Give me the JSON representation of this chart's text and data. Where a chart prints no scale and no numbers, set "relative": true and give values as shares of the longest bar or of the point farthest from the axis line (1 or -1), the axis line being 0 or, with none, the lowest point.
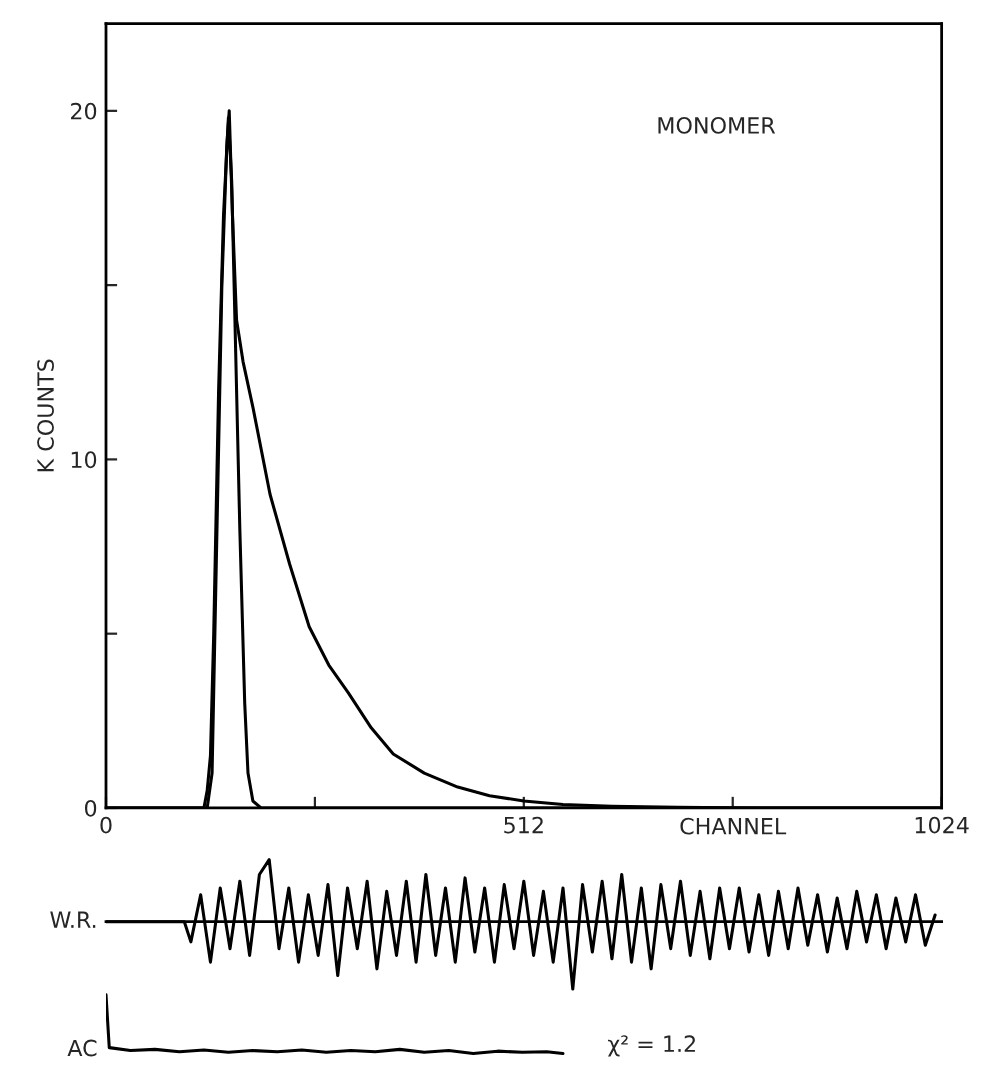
{
  "chart_data": [
    {
      "type": "line",
      "ylabel": "K COUNTS",
      "xlabel": "CHANNEL",
      "annotations": [
        "MONOMER"
      ],
      "xlim": [
        0,
        1024
      ],
      "ylim": [
        0,
        22.5
      ],
      "xticks": [
        0,
        {
          "value": 256,
          "label": null
        },
        512,
        {
          "value": 768,
          "label": null
        },
        1024
      ],
      "yticks": [
        0,
        {
          "value": 5,
          "label": null
        },
        10,
        {
          "value": 15,
          "label": null
        },
        20
      ],
      "grid": false,
      "legend": false,
      "series": [
        {
          "color": "#000000",
          "x": [
            0,
            120,
            124,
            128,
            132,
            138,
            144,
            150,
            154,
            158,
            164,
            170,
            174,
            180,
            190,
            1024
          ],
          "values": [
            0,
            0,
            0.5,
            1.5,
            5,
            12,
            17,
            19.8,
            18,
            14,
            8,
            3,
            1,
            0.2,
            0,
            0
          ]
        },
        {
          "color": "#000000",
          "x": [
            0,
            124,
            130,
            136,
            142,
            148,
            151,
            155,
            160,
            168,
            180,
            201,
            225,
            249,
            273,
            297,
            325,
            352,
            390,
            431,
            470,
            512,
            560,
            620,
            700,
            800,
            1024
          ],
          "values": [
            0,
            0,
            1,
            8,
            15,
            19,
            20,
            17,
            14,
            12.8,
            11.5,
            9.0,
            7.0,
            5.2,
            4.1,
            3.3,
            2.3,
            1.55,
            1.0,
            0.6,
            0.35,
            0.2,
            0.1,
            0.05,
            0.02,
            0,
            0
          ]
        }
      ]
    },
    {
      "type": "line",
      "relative": true,
      "ylabel": "W.R.",
      "xlim": [
        0,
        1024
      ],
      "legend": false,
      "series": [
        {
          "color": "#000000",
          "x": [
            0,
            96,
            104,
            116,
            128,
            140,
            152,
            164,
            176,
            188,
            200,
            212,
            224,
            236,
            248,
            260,
            272,
            284,
            296,
            308,
            320,
            332,
            344,
            356,
            368,
            380,
            392,
            404,
            416,
            428,
            440,
            452,
            464,
            476,
            488,
            500,
            512,
            524,
            536,
            548,
            560,
            572,
            584,
            596,
            608,
            620,
            632,
            644,
            656,
            668,
            680,
            692,
            704,
            716,
            728,
            740,
            752,
            764,
            776,
            788,
            800,
            812,
            824,
            836,
            848,
            860,
            872,
            884,
            896,
            908,
            920,
            932,
            944,
            956,
            968,
            980,
            992,
            1004,
            1016
          ],
          "values": [
            0,
            0,
            -0.3,
            0.4,
            -0.6,
            0.5,
            -0.4,
            0.6,
            -0.5,
            0.7,
            0.92,
            -0.4,
            0.5,
            -0.6,
            0.4,
            -0.5,
            0.55,
            -0.8,
            0.5,
            -0.4,
            0.6,
            -0.7,
            0.45,
            -0.5,
            0.6,
            -0.6,
            0.7,
            -0.5,
            0.5,
            -0.6,
            0.65,
            -0.45,
            0.5,
            -0.6,
            0.55,
            -0.4,
            0.6,
            -0.5,
            0.45,
            -0.6,
            0.5,
            -1,
            0.55,
            -0.45,
            0.6,
            -0.55,
            0.7,
            -0.6,
            0.5,
            -0.7,
            0.55,
            -0.4,
            0.6,
            -0.5,
            0.45,
            -0.55,
            0.5,
            -0.4,
            0.5,
            -0.45,
            0.4,
            -0.5,
            0.45,
            -0.4,
            0.5,
            -0.35,
            0.4,
            -0.45,
            0.35,
            -0.4,
            0.45,
            -0.3,
            0.4,
            -0.4,
            0.35,
            -0.3,
            0.4,
            -0.35,
            0.1
          ]
        }
      ]
    },
    {
      "type": "line",
      "relative": true,
      "ylabel": "AC",
      "annotations": [
        "χ² = 1.2"
      ],
      "xlim": [
        0,
        1024
      ],
      "legend": false,
      "series": [
        {
          "color": "#000000",
          "x": [
            0,
            4,
            30,
            60,
            90,
            120,
            150,
            180,
            210,
            240,
            270,
            300,
            330,
            360,
            390,
            420,
            450,
            480,
            510,
            540,
            560
          ],
          "values": [
            1,
            0.1,
            0.05,
            0.07,
            0.03,
            0.06,
            0.02,
            0.05,
            0.03,
            0.06,
            0.02,
            0.05,
            0.03,
            0.07,
            0.02,
            0.05,
            0,
            0.04,
            0.02,
            0.03,
            0
          ]
        }
      ]
    }
  ]
}
